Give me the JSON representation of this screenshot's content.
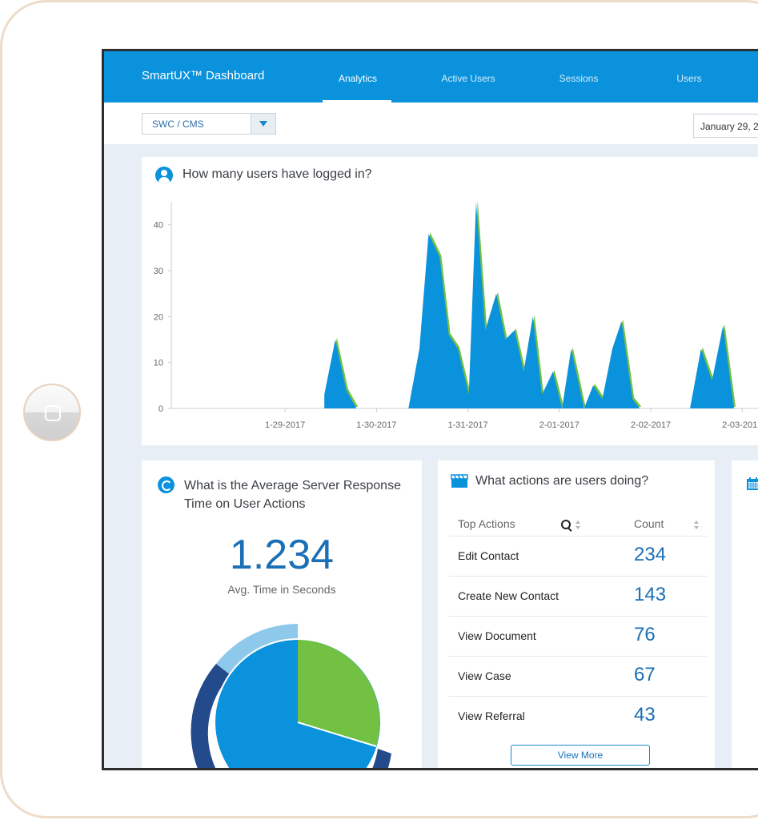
{
  "header": {
    "brand": "SmartUX™ Dashboard",
    "nav": [
      "Analytics",
      "Active Users",
      "Sessions",
      "Users"
    ],
    "active_index": 0
  },
  "filters": {
    "source_select": "SWC / CMS",
    "date": "January 29, 2"
  },
  "users_card": {
    "title": "How many users have logged in?",
    "icon": "user-icon"
  },
  "chart_data": {
    "type": "area",
    "title": "How many users have logged in?",
    "xlabel": "",
    "ylabel": "",
    "ylim": [
      0,
      45
    ],
    "yticks": [
      0,
      10,
      20,
      30,
      40
    ],
    "xticks": [
      "1-29-2017",
      "1-30-2017",
      "1-31-2017",
      "2-01-2017",
      "2-02-2017",
      "2-03-2017"
    ],
    "x_range": [
      0,
      5.9
    ],
    "grid": false,
    "color": "#0a92dd",
    "accent": "#72c142",
    "points": [
      [
        0.93,
        0
      ],
      [
        0.93,
        3
      ],
      [
        1.05,
        15
      ],
      [
        1.17,
        4
      ],
      [
        1.28,
        0
      ],
      [
        1.85,
        0
      ],
      [
        1.97,
        13
      ],
      [
        2.07,
        38
      ],
      [
        2.19,
        33
      ],
      [
        2.29,
        16
      ],
      [
        2.39,
        13
      ],
      [
        2.51,
        3
      ],
      [
        2.59,
        45
      ],
      [
        2.69,
        17
      ],
      [
        2.81,
        25
      ],
      [
        2.91,
        15
      ],
      [
        3.01,
        17
      ],
      [
        3.11,
        8
      ],
      [
        3.21,
        20
      ],
      [
        3.31,
        3
      ],
      [
        3.43,
        8
      ],
      [
        3.53,
        0
      ],
      [
        3.63,
        13
      ],
      [
        3.77,
        0
      ],
      [
        3.87,
        5
      ],
      [
        3.97,
        2
      ],
      [
        4.08,
        13
      ],
      [
        4.18,
        19
      ],
      [
        4.3,
        2
      ],
      [
        4.38,
        0
      ],
      [
        4.93,
        0
      ],
      [
        5.05,
        13
      ],
      [
        5.17,
        6
      ],
      [
        5.29,
        18
      ],
      [
        5.41,
        0
      ],
      [
        5.9,
        0
      ]
    ]
  },
  "response_card": {
    "title": "What is the Average Server Response Time on User Actions",
    "value": "1.234",
    "subtitle": "Avg. Time in Seconds",
    "icon": "refresh-icon",
    "pie_colors": {
      "main": "#0a92dd",
      "green": "#72c142",
      "light": "#8ec8ea",
      "dark": "#234a8a"
    }
  },
  "actions_card": {
    "title": "What actions are users doing?",
    "icon": "clapperboard-icon",
    "columns": [
      "Top Actions",
      "Count"
    ],
    "rows": [
      {
        "name": "Edit Contact",
        "count": "234"
      },
      {
        "name": "Create New Contact",
        "count": "143"
      },
      {
        "name": "View Document",
        "count": "76"
      },
      {
        "name": "View Case",
        "count": "67"
      },
      {
        "name": "View Referral",
        "count": "43"
      }
    ],
    "view_more": "View More"
  },
  "third_card": {
    "icon": "calendar-icon"
  }
}
